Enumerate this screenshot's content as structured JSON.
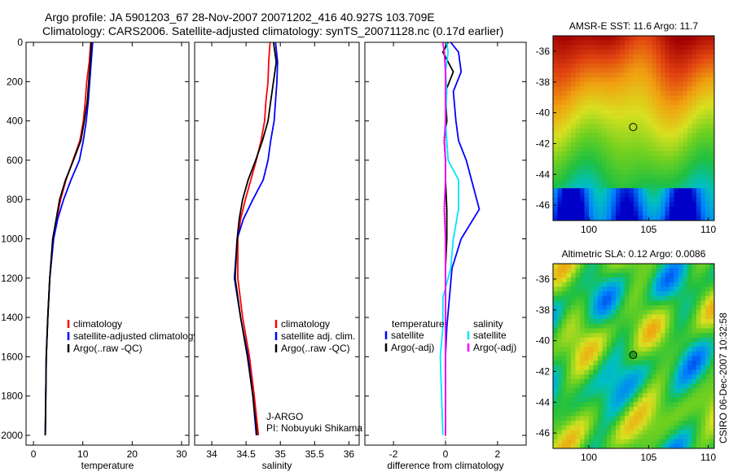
{
  "header": {
    "title_line1": "Argo profile: JA 5901203_67 28-Nov-2007 20071202_416 40.927S 103.709E",
    "title_line2": "Climatology: CARS2006. Satellite-adjusted climatology: synTS_20071128.nc (0.17d earlier)"
  },
  "credit": "CSIRO 06-Dec-2007 10:32:58",
  "colors": {
    "climatology": "#ff0000",
    "satellite": "#0000ff",
    "argo": "#000000",
    "sal_satellite": "#00e5ff",
    "sal_argo": "#ff00ff",
    "marker": "#000000"
  },
  "chart_data": [
    {
      "type": "line",
      "name": "temperature",
      "xlabel": "temperature",
      "ylabel": "",
      "xlim": [
        -1.5,
        31.5
      ],
      "ylim": [
        2050,
        0
      ],
      "xticks": [
        0,
        10,
        20,
        30
      ],
      "yticks": [
        0,
        200,
        400,
        600,
        800,
        1000,
        1200,
        1400,
        1600,
        1800,
        2000
      ],
      "legend": [
        "climatology",
        "satellite-adjusted climatology",
        "Argo(..raw -QC)"
      ],
      "legend_position": "lower-right",
      "series": [
        {
          "name": "climatology",
          "color": "#ff0000",
          "x": [
            11.6,
            11.3,
            10.8,
            10.5,
            10.1,
            9.4,
            8.0,
            6.6,
            5.5,
            4.7,
            4.0,
            3.3,
            2.9,
            2.6,
            2.5,
            2.4
          ],
          "y": [
            0,
            100,
            200,
            300,
            400,
            500,
            600,
            700,
            800,
            900,
            1000,
            1200,
            1400,
            1600,
            1800,
            2000
          ]
        },
        {
          "name": "satellite-adjusted climatology",
          "color": "#0000ff",
          "x": [
            12.0,
            11.7,
            11.4,
            11.1,
            10.7,
            10.1,
            9.3,
            7.6,
            6.1,
            4.9,
            4.1,
            3.3,
            2.9,
            2.6,
            2.5,
            2.4
          ],
          "y": [
            0,
            100,
            200,
            300,
            400,
            500,
            600,
            700,
            800,
            900,
            1000,
            1200,
            1400,
            1600,
            1800,
            2000
          ]
        },
        {
          "name": "Argo(..raw -QC)",
          "color": "#000000",
          "x": [
            11.7,
            11.5,
            11.2,
            10.9,
            10.3,
            9.6,
            8.1,
            6.5,
            5.3,
            4.6,
            3.9,
            3.3,
            2.9,
            2.6,
            2.5,
            2.4
          ],
          "y": [
            0,
            100,
            200,
            300,
            400,
            500,
            600,
            700,
            800,
            900,
            1000,
            1200,
            1400,
            1600,
            1800,
            2000
          ]
        }
      ]
    },
    {
      "type": "line",
      "name": "salinity",
      "xlabel": "salinity",
      "ylabel": "",
      "xlim": [
        33.75,
        36.15
      ],
      "ylim": [
        2050,
        0
      ],
      "xticks": [
        34,
        34.5,
        35,
        35.5,
        36
      ],
      "xtick_labels": [
        "34",
        "34.5",
        "35",
        "35.5",
        "36"
      ],
      "legend": [
        "climatology",
        "satellite adj. clim.",
        "Argo(..raw -QC)"
      ],
      "legend_position": "lower-right",
      "series": [
        {
          "name": "climatology",
          "color": "#ff0000",
          "x": [
            34.85,
            34.83,
            34.82,
            34.79,
            34.77,
            34.72,
            34.65,
            34.57,
            34.49,
            34.42,
            34.38,
            34.38,
            34.45,
            34.55,
            34.62,
            34.68
          ],
          "y": [
            0,
            100,
            200,
            300,
            400,
            500,
            600,
            700,
            800,
            900,
            1000,
            1200,
            1400,
            1600,
            1800,
            2000
          ]
        },
        {
          "name": "satellite adj. clim.",
          "color": "#0000ff",
          "x": [
            34.93,
            34.96,
            34.95,
            34.93,
            34.91,
            34.86,
            34.82,
            34.75,
            34.6,
            34.46,
            34.37,
            34.33,
            34.42,
            34.53,
            34.6,
            34.65
          ],
          "y": [
            0,
            100,
            200,
            300,
            400,
            500,
            600,
            700,
            800,
            900,
            1000,
            1200,
            1400,
            1600,
            1800,
            2000
          ]
        },
        {
          "name": "Argo(..raw -QC)",
          "color": "#000000",
          "x": [
            34.9,
            34.94,
            34.9,
            34.86,
            34.82,
            34.74,
            34.64,
            34.53,
            34.45,
            34.4,
            34.37,
            34.34,
            34.42,
            34.52,
            34.6,
            34.66
          ],
          "y": [
            0,
            100,
            200,
            300,
            400,
            500,
            600,
            700,
            800,
            900,
            1000,
            1200,
            1400,
            1600,
            1800,
            2000
          ]
        }
      ],
      "annotations": [
        "J-ARGO",
        "PI: Nobuyuki Shikama"
      ]
    },
    {
      "type": "line",
      "name": "difference",
      "xlabel": "difference from climatology",
      "ylabel": "",
      "xlim": [
        -3.1,
        3.1
      ],
      "ylim": [
        2050,
        0
      ],
      "xticks": [
        -2,
        0,
        2
      ],
      "legend_left_title": "temperature",
      "legend_right_title": "salinity",
      "legend_left": [
        "satellite",
        "Argo(-adj)"
      ],
      "legend_right": [
        "satellite",
        "Argo(-adj)"
      ],
      "legend_position": "lower-right",
      "series": [
        {
          "name": "temperature satellite",
          "color": "#0000ff",
          "x": [
            0.2,
            0.5,
            0.6,
            0.3,
            0.4,
            0.5,
            0.8,
            1.0,
            1.3,
            0.6,
            0.25,
            0.15,
            0.05,
            0.0,
            0.0,
            0.0
          ],
          "y": [
            0,
            50,
            150,
            250,
            400,
            500,
            600,
            700,
            850,
            1000,
            1150,
            1300,
            1450,
            1600,
            1800,
            2000
          ]
        },
        {
          "name": "temperature Argo(-adj)",
          "color": "#000000",
          "x": [
            0.1,
            -0.1,
            0.3,
            0.0,
            0.05,
            -0.05,
            0.0,
            0.0,
            0.05,
            0.05,
            0.0,
            0.0,
            0.0,
            0.0,
            0.0,
            0.0
          ],
          "y": [
            0,
            50,
            150,
            250,
            400,
            500,
            600,
            700,
            850,
            1000,
            1150,
            1300,
            1450,
            1600,
            1800,
            2000
          ]
        },
        {
          "name": "salinity satellite",
          "color": "#00e5ff",
          "x": [
            0.05,
            0.1,
            0.0,
            0.05,
            0.0,
            0.05,
            0.1,
            0.5,
            0.5,
            0.3,
            0.2,
            -0.1,
            -0.1,
            -0.2,
            -0.15,
            -0.1
          ],
          "y": [
            0,
            50,
            150,
            250,
            400,
            500,
            600,
            700,
            850,
            1000,
            1150,
            1300,
            1450,
            1600,
            1800,
            2000
          ]
        },
        {
          "name": "salinity Argo(-adj)",
          "color": "#ff00ff",
          "x": [
            -0.1,
            -0.05,
            0.0,
            0.0,
            0.0,
            -0.05,
            0.0,
            0.0,
            -0.05,
            0.0,
            0.0,
            0.0,
            0.0,
            0.0,
            0.0,
            0.0
          ],
          "y": [
            0,
            50,
            150,
            250,
            400,
            500,
            600,
            700,
            850,
            1000,
            1150,
            1300,
            1450,
            1600,
            1800,
            2000
          ]
        }
      ]
    },
    {
      "type": "heatmap",
      "name": "sst-map",
      "title": "AMSR-E SST: 11.6 Argo: 11.7",
      "xlim": [
        97,
        110.5
      ],
      "ylim": [
        -47,
        -35
      ],
      "xticks": [
        100,
        105,
        110
      ],
      "yticks": [
        -36,
        -38,
        -40,
        -42,
        -44,
        -46
      ],
      "marker": {
        "lon": 103.709,
        "lat": -40.927,
        "fill": "none"
      }
    },
    {
      "type": "heatmap",
      "name": "sla-map",
      "title": "Altimetric SLA: 0.12 Argo: 0.0086",
      "xlim": [
        97,
        110.5
      ],
      "ylim": [
        -47,
        -35
      ],
      "xticks": [
        100,
        105,
        110
      ],
      "yticks": [
        -36,
        -38,
        -40,
        -42,
        -44,
        -46
      ],
      "marker": {
        "lon": 103.709,
        "lat": -40.927,
        "fill": "green"
      }
    }
  ]
}
